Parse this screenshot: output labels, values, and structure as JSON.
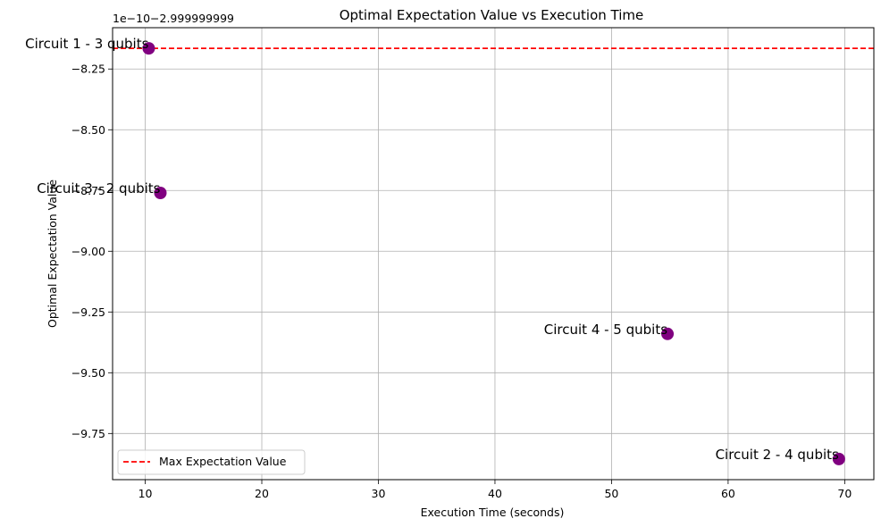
{
  "chart_data": {
    "type": "scatter",
    "title": "Optimal Expectation Value vs Execution Time",
    "xlabel": "Execution Time (seconds)",
    "ylabel": "Optimal Expectation Value",
    "y_offset_label": "1e−10−2.999999999",
    "xlim": [
      7.2,
      72.5
    ],
    "ylim": [
      -9.94,
      -8.08
    ],
    "x_ticks": [
      10,
      20,
      30,
      40,
      50,
      60,
      70
    ],
    "y_ticks": [
      -8.25,
      -8.5,
      -8.75,
      -9.0,
      -9.25,
      -9.5,
      -9.75
    ],
    "x_tick_labels": [
      "10",
      "20",
      "30",
      "40",
      "50",
      "60",
      "70"
    ],
    "y_tick_labels": [
      "−8.25",
      "−8.50",
      "−8.75",
      "−9.00",
      "−9.25",
      "−9.50",
      "−9.75"
    ],
    "grid": true,
    "marker_color": "#800080",
    "points": [
      {
        "x": 10.3,
        "y": -8.165,
        "label": "Circuit 1 - 3 qubits"
      },
      {
        "x": 11.3,
        "y": -8.76,
        "label": "Circuit 3 - 2 qubits"
      },
      {
        "x": 54.8,
        "y": -9.34,
        "label": "Circuit 4 - 5 qubits"
      },
      {
        "x": 69.5,
        "y": -9.855,
        "label": "Circuit 2 - 4 qubits"
      }
    ],
    "hline": {
      "y": -8.165,
      "color": "#ff0000",
      "style": "dashed",
      "name": "Max Expectation Value"
    },
    "legend": {
      "position": "lower-left",
      "entries": [
        "Max Expectation Value"
      ]
    }
  }
}
